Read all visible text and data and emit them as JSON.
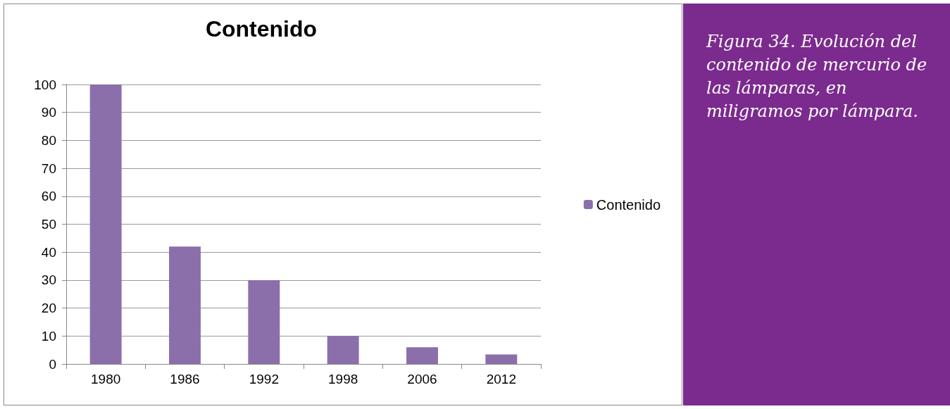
{
  "chart_data": {
    "type": "bar",
    "title": "Contenido",
    "categories": [
      "1980",
      "1986",
      "1992",
      "1998",
      "2006",
      "2012"
    ],
    "series": [
      {
        "name": "Contenido",
        "color": "#8b6fab",
        "values": [
          100,
          42,
          30,
          10,
          6,
          3.4
        ]
      }
    ],
    "ylim": [
      0,
      100
    ],
    "yticks": [
      0,
      10,
      20,
      30,
      40,
      50,
      60,
      70,
      80,
      90,
      100
    ],
    "grid": "y",
    "legend": "right",
    "annotations": [
      "Figura 34. Evolución del contenido de mercurio de las lámparas, en miligramos por lámpara."
    ]
  }
}
